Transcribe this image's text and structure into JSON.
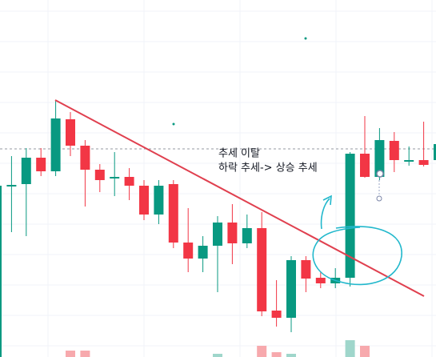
{
  "chart_data": {
    "type": "candlestick",
    "annotations": [
      "추세 이탈",
      "하락 추세-> 상승 추세"
    ],
    "x": [
      null,
      null,
      null,
      null,
      null,
      null,
      null,
      null,
      null,
      null,
      null,
      null,
      null,
      null,
      null,
      null,
      null,
      null,
      null,
      null,
      null,
      null,
      null,
      null,
      null,
      null,
      null,
      null,
      null,
      null,
      null
    ],
    "open": [
      0,
      214,
      216,
      249,
      232,
      297,
      264,
      234,
      224,
      225,
      214,
      178,
      216,
      143,
      123,
      139,
      168,
      142,
      161,
      58,
      49,
      121,
      99,
      92,
      99,
      254,
      225,
      270,
      245,
      246,
      246
    ],
    "high": [
      214,
      251,
      261,
      261,
      321,
      306,
      271,
      241,
      256,
      236,
      221,
      221,
      221,
      186,
      151,
      176,
      191,
      178,
      181,
      96,
      126,
      126,
      106,
      111,
      256,
      301,
      286,
      281,
      263,
      294,
      276
    ],
    "low": [
      0,
      156,
      151,
      226,
      226,
      251,
      188,
      206,
      201,
      196,
      171,
      166,
      136,
      106,
      106,
      81,
      116,
      136,
      51,
      38,
      31,
      81,
      86,
      86,
      88,
      224,
      221,
      231,
      239,
      238,
      240
    ],
    "close": [
      214,
      215,
      249,
      232,
      298,
      264,
      234,
      221,
      225,
      214,
      178,
      214,
      143,
      123,
      139,
      168,
      142,
      161,
      57,
      49,
      121,
      98,
      92,
      99,
      254,
      225,
      271,
      246,
      246,
      240,
      266
    ],
    "volume": [
      146,
      0,
      0,
      0,
      0,
      8,
      8,
      0,
      0,
      0,
      0,
      0,
      0,
      0,
      0,
      4,
      0,
      0,
      14,
      6,
      4,
      0,
      0,
      0,
      21,
      14,
      0,
      0,
      0,
      0,
      0
    ],
    "up_color": "#089981",
    "down_color": "#f23645",
    "volume_up_color": "#9fd6cb",
    "volume_down_color": "#f7a9ad",
    "ylim": [
      0,
      446
    ]
  }
}
